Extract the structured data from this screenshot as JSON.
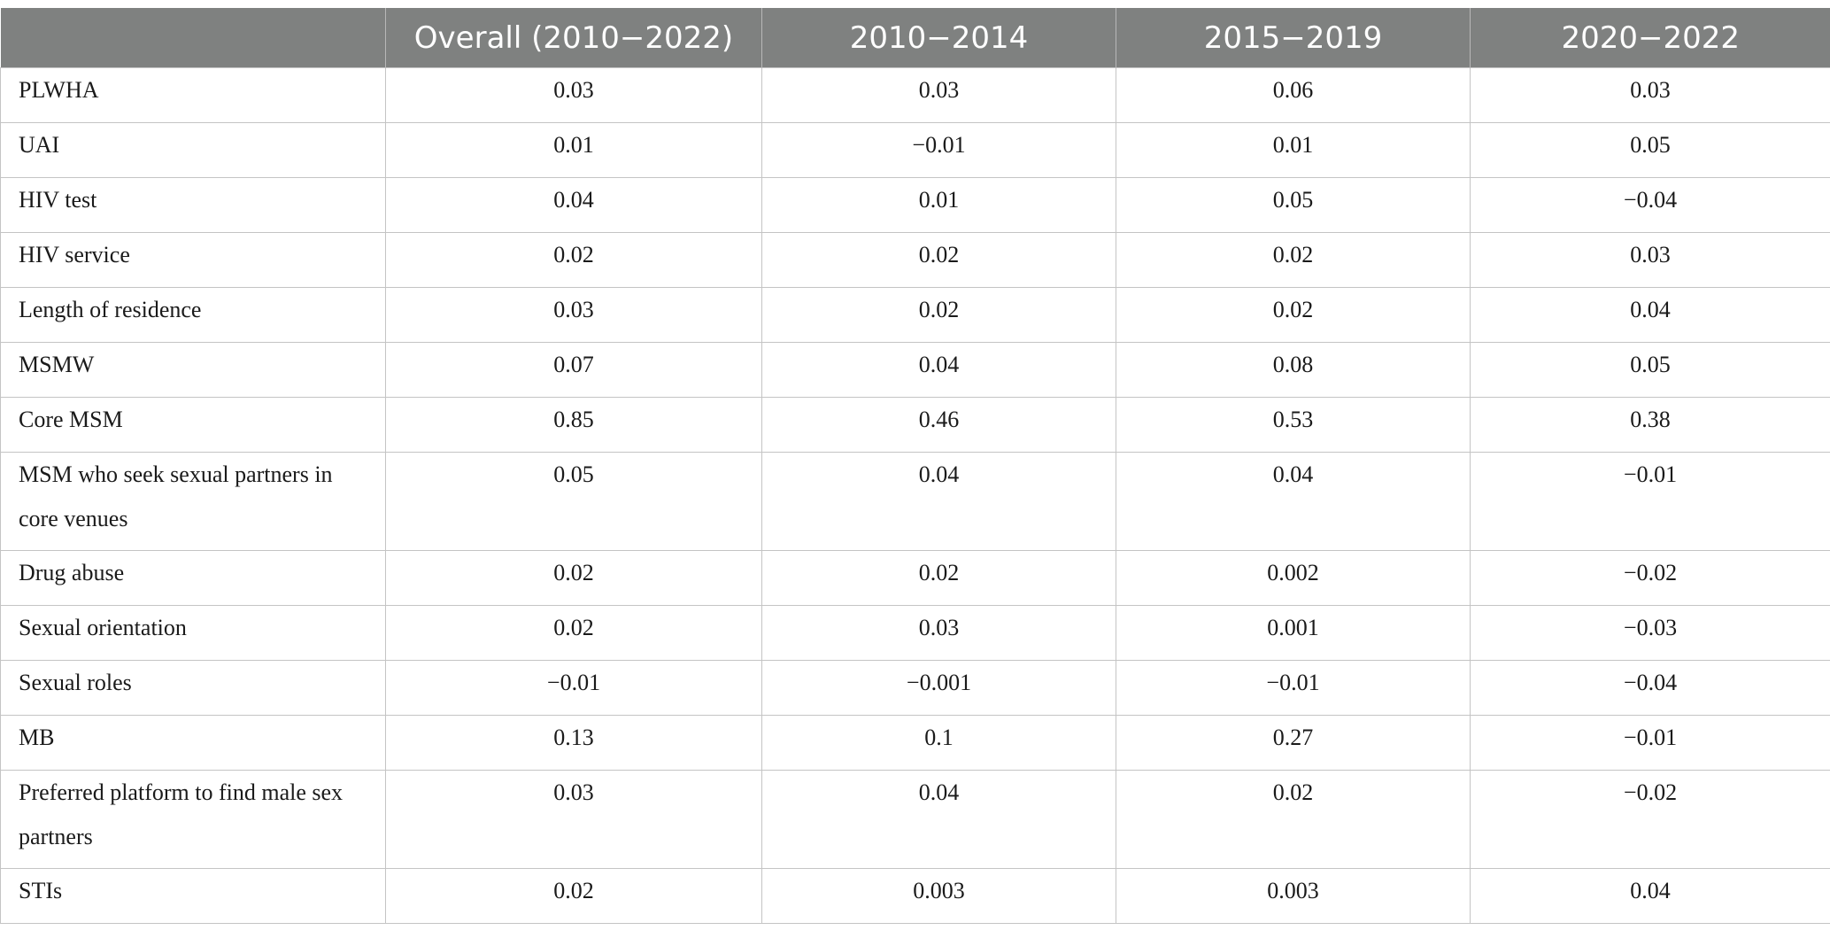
{
  "table": {
    "headers": [
      "",
      "Overall (2010−2022)",
      "2010−2014",
      "2015−2019",
      "2020−2022"
    ],
    "rows": [
      {
        "label": "PLWHA",
        "values": [
          "0.03",
          "0.03",
          "0.06",
          "0.03"
        ]
      },
      {
        "label": "UAI",
        "values": [
          "0.01",
          "−0.01",
          "0.01",
          "0.05"
        ]
      },
      {
        "label": "HIV test",
        "values": [
          "0.04",
          "0.01",
          "0.05",
          "−0.04"
        ]
      },
      {
        "label": "HIV service",
        "values": [
          "0.02",
          "0.02",
          "0.02",
          "0.03"
        ]
      },
      {
        "label": "Length of residence",
        "values": [
          "0.03",
          "0.02",
          "0.02",
          "0.04"
        ]
      },
      {
        "label": "MSMW",
        "values": [
          "0.07",
          "0.04",
          "0.08",
          "0.05"
        ]
      },
      {
        "label": "Core MSM",
        "values": [
          "0.85",
          "0.46",
          "0.53",
          "0.38"
        ]
      },
      {
        "label": "MSM who seek sexual partners in core venues",
        "values": [
          "0.05",
          "0.04",
          "0.04",
          "−0.01"
        ]
      },
      {
        "label": "Drug abuse",
        "values": [
          "0.02",
          "0.02",
          "0.002",
          "−0.02"
        ]
      },
      {
        "label": "Sexual orientation",
        "values": [
          "0.02",
          "0.03",
          "0.001",
          "−0.03"
        ]
      },
      {
        "label": "Sexual roles",
        "values": [
          "−0.01",
          "−0.001",
          "−0.01",
          "−0.04"
        ]
      },
      {
        "label": "MB",
        "values": [
          "0.13",
          "0.1",
          "0.27",
          "−0.01"
        ]
      },
      {
        "label": "Preferred platform to find male sex partners",
        "values": [
          "0.03",
          "0.04",
          "0.02",
          "−0.02"
        ]
      },
      {
        "label": "STIs",
        "values": [
          "0.02",
          "0.003",
          "0.003",
          "0.04"
        ]
      }
    ]
  }
}
